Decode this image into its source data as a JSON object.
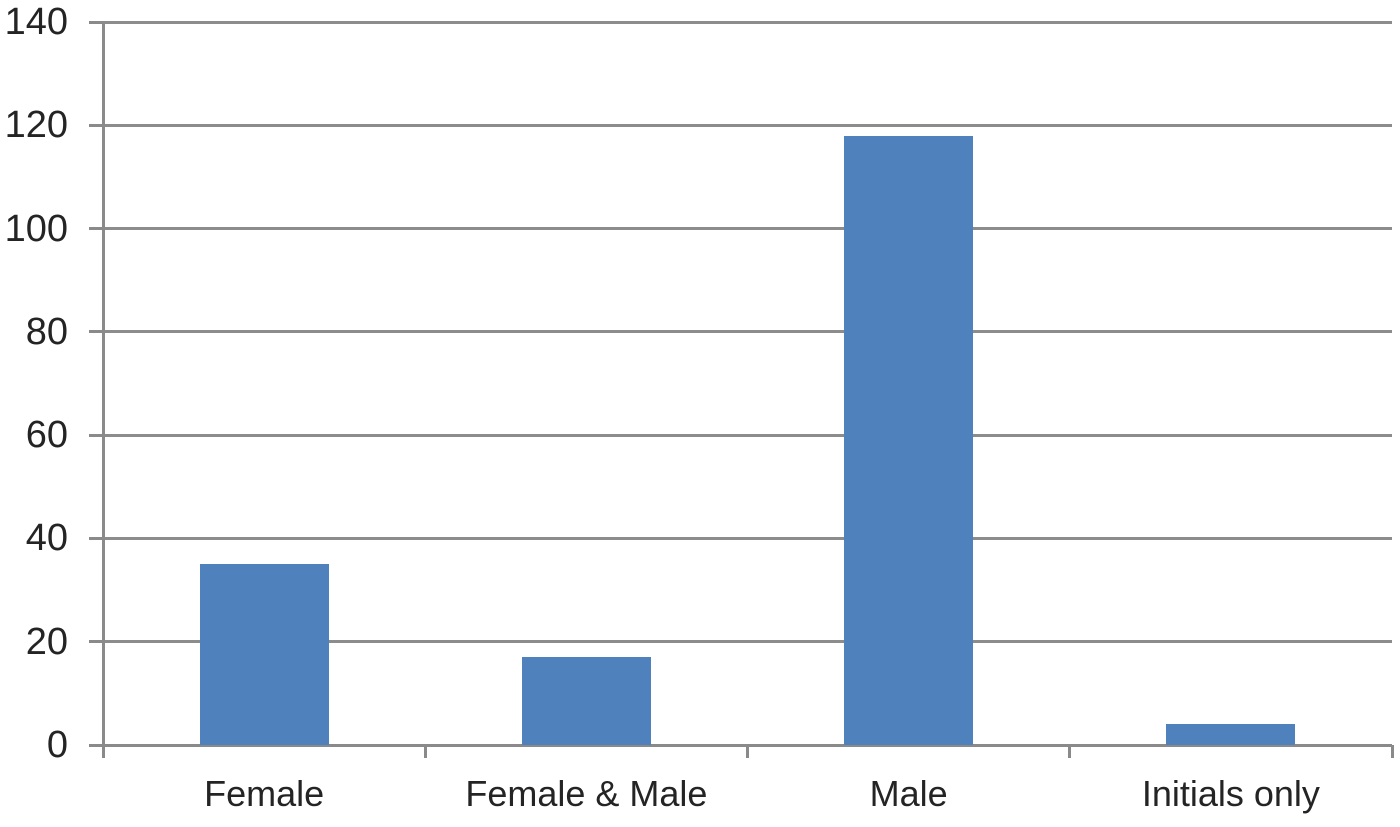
{
  "chart_data": {
    "type": "bar",
    "title": "",
    "xlabel": "",
    "ylabel": "",
    "categories": [
      "Female",
      "Female & Male",
      "Male",
      "Initials only"
    ],
    "values": [
      35,
      17,
      118,
      4
    ],
    "ylim": [
      0,
      140
    ],
    "ytick_step": 20,
    "ytick_labels": [
      "0",
      "20",
      "40",
      "60",
      "80",
      "100",
      "120",
      "140"
    ],
    "grid": "horizontal",
    "legend": "none",
    "colors": {
      "bar": "#4f81bd",
      "gridline": "#8c8c8c",
      "axis": "#8a8a8a",
      "text": "#242424",
      "background": "#ffffff"
    }
  }
}
